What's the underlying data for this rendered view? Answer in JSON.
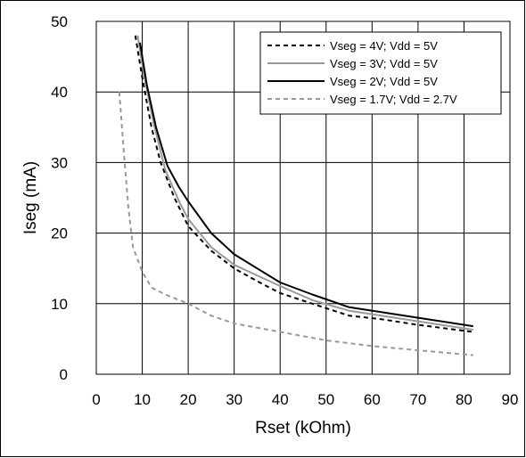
{
  "chart_data": {
    "type": "line",
    "title": "",
    "xlabel": "Rset (kOhm)",
    "ylabel": "Iseg (mA)",
    "xlim": [
      0,
      90
    ],
    "ylim": [
      0,
      50
    ],
    "x_ticks": [
      0,
      10,
      20,
      30,
      40,
      50,
      60,
      70,
      80,
      90
    ],
    "y_ticks": [
      0,
      10,
      20,
      30,
      40,
      50
    ],
    "grid": true,
    "legend_position": "top-right",
    "series": [
      {
        "name": "Vseg = 4V; Vdd = 5V",
        "color": "#000000",
        "dash": "dashed",
        "x": [
          8.5,
          10,
          12,
          14,
          17,
          20,
          25,
          30,
          35,
          40,
          47,
          55,
          62,
          70,
          82
        ],
        "y": [
          48,
          42,
          35,
          30,
          25,
          21,
          17.5,
          15,
          13.2,
          11.5,
          10,
          8.3,
          7.8,
          7,
          6
        ]
      },
      {
        "name": "Vseg = 3V; Vdd = 5V",
        "color": "#999999",
        "dash": "solid",
        "x": [
          9,
          10.5,
          12.5,
          15,
          18,
          20,
          25,
          30,
          35,
          40,
          47,
          55,
          62,
          70,
          82
        ],
        "y": [
          48,
          42,
          35.5,
          29,
          24.5,
          22,
          18,
          15.5,
          14,
          12.5,
          10.5,
          9,
          8.3,
          7.5,
          6.3
        ]
      },
      {
        "name": "Vseg = 2V; Vdd = 5V",
        "color": "#000000",
        "dash": "solid",
        "x": [
          9.5,
          11,
          13,
          15.5,
          18,
          20,
          25,
          30,
          35,
          40,
          47,
          55,
          62,
          70,
          82
        ],
        "y": [
          47,
          41,
          35,
          29.5,
          26.5,
          24.5,
          20,
          17,
          15,
          13,
          11.3,
          9.5,
          8.8,
          8,
          6.8
        ]
      },
      {
        "name": "Vseg = 1.7V; Vdd = 2.7V",
        "color": "#999999",
        "dash": "dashed",
        "x": [
          5,
          6,
          7,
          8,
          10,
          12,
          15,
          20,
          25,
          30,
          40,
          50,
          60,
          70,
          82
        ],
        "y": [
          40,
          31.5,
          23.5,
          18,
          14.5,
          12.3,
          11.3,
          10,
          8.3,
          7.2,
          6,
          4.8,
          4,
          3.4,
          2.7
        ]
      }
    ]
  }
}
